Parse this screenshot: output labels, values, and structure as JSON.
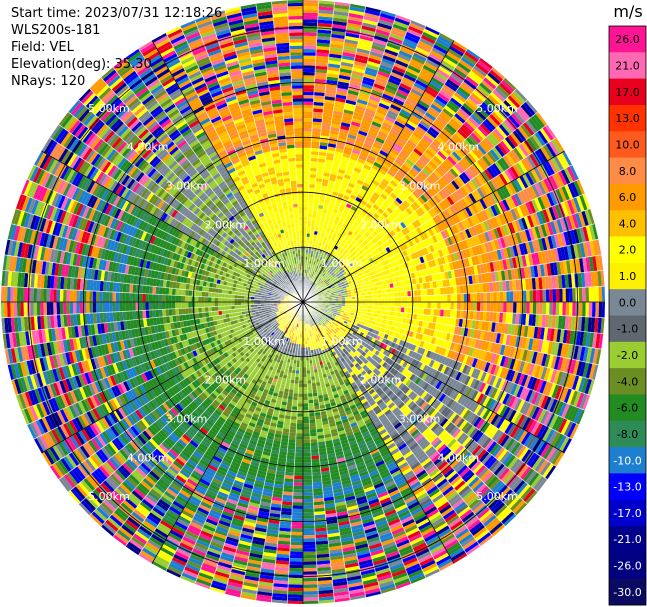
{
  "info": {
    "start_time": "Start time: 2023/07/31 12:18:26",
    "station": "WLS200s-181",
    "field": "Field: VEL",
    "elevation": "Elevation(deg): 35.30",
    "nrays": "NRays: 120"
  },
  "chart_data": {
    "type": "heatmap",
    "projection": "polar-ppi",
    "nrays": 120,
    "range_ring_labels": [
      "1.00km",
      "2.00km",
      "3.00km",
      "4.00km",
      "5.00km"
    ],
    "range_rings_km": [
      1,
      2,
      3,
      4,
      5
    ],
    "max_range_km": 5.5,
    "colorbar": {
      "unit": "m/s",
      "tick_labels": [
        "26.0",
        "21.0",
        "17.0",
        "13.0",
        "10.0",
        "8.0",
        "6.0",
        "4.0",
        "2.0",
        "1.0",
        "0.0",
        "-1.0",
        "-2.0",
        "-4.0",
        "-6.0",
        "-8.0",
        "-10.0",
        "-13.0",
        "-17.0",
        "-21.0",
        "-26.0",
        "-30.0"
      ],
      "colors": [
        "#ff1493",
        "#ff69b4",
        "#e8001e",
        "#ff3300",
        "#ff5a1e",
        "#ff8c46",
        "#ff9a00",
        "#ffc000",
        "#ffff00",
        "#fff000",
        "#7a8896",
        "#5f6870",
        "#9acd32",
        "#6b8e23",
        "#228b22",
        "#2e8b57",
        "#1e7fd0",
        "#0000ff",
        "#0000cd",
        "#00008b",
        "#000080",
        "#0a0a60"
      ]
    }
  }
}
